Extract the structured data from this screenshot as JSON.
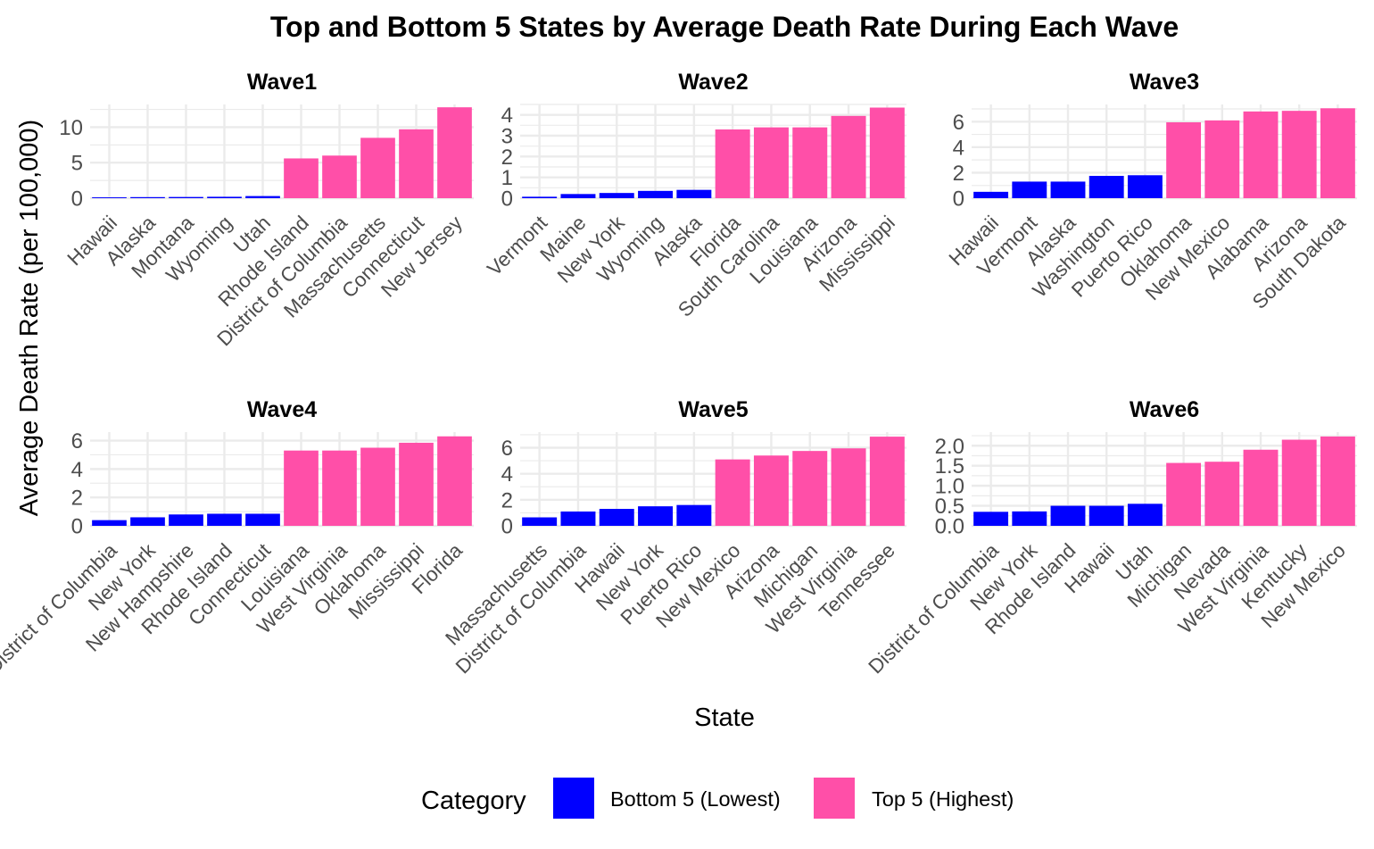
{
  "chart_data": {
    "type": "bar",
    "title": "Top and Bottom 5 States by Average Death Rate During Each Wave",
    "xlabel": "State",
    "ylabel": "Average Death Rate (per 100,000)",
    "legend": {
      "title": "Category",
      "placement": "bottom",
      "entries": [
        {
          "label": "Bottom 5 (Lowest)",
          "color": "#0000FF"
        },
        {
          "label": "Top 5 (Highest)",
          "color": "#FF4FA8"
        }
      ]
    },
    "grid": true,
    "panels": [
      {
        "name": "Wave1",
        "ylim": [
          0,
          13.2
        ],
        "yticks": [
          0,
          5,
          10
        ],
        "ytick_labels": [
          "0",
          "5",
          "10"
        ],
        "categories": [
          "Hawaii",
          "Alaska",
          "Montana",
          "Wyoming",
          "Utah",
          "Rhode Island",
          "District of Columbia",
          "Massachusetts",
          "Connecticut",
          "New Jersey"
        ],
        "values": [
          0.12,
          0.15,
          0.17,
          0.2,
          0.3,
          5.6,
          6.0,
          8.5,
          9.7,
          12.8
        ],
        "groups": [
          "bottom",
          "bottom",
          "bottom",
          "bottom",
          "bottom",
          "top",
          "top",
          "top",
          "top",
          "top"
        ]
      },
      {
        "name": "Wave2",
        "ylim": [
          0,
          4.5
        ],
        "yticks": [
          0,
          1,
          2,
          3,
          4
        ],
        "ytick_labels": [
          "0",
          "1",
          "2",
          "3",
          "4"
        ],
        "categories": [
          "Vermont",
          "Maine",
          "New York",
          "Wyoming",
          "Alaska",
          "Florida",
          "South Carolina",
          "Louisiana",
          "Arizona",
          "Mississippi"
        ],
        "values": [
          0.07,
          0.2,
          0.25,
          0.35,
          0.4,
          3.3,
          3.4,
          3.4,
          3.95,
          4.35
        ],
        "groups": [
          "bottom",
          "bottom",
          "bottom",
          "bottom",
          "bottom",
          "top",
          "top",
          "top",
          "top",
          "top"
        ]
      },
      {
        "name": "Wave3",
        "ylim": [
          0,
          7.35
        ],
        "yticks": [
          0,
          2,
          4,
          6
        ],
        "ytick_labels": [
          "0",
          "2",
          "4",
          "6"
        ],
        "categories": [
          "Hawaii",
          "Vermont",
          "Alaska",
          "Washington",
          "Puerto Rico",
          "Oklahoma",
          "New Mexico",
          "Alabama",
          "Arizona",
          "South Dakota"
        ],
        "values": [
          0.5,
          1.3,
          1.3,
          1.75,
          1.8,
          5.95,
          6.1,
          6.8,
          6.85,
          7.05
        ],
        "groups": [
          "bottom",
          "bottom",
          "bottom",
          "bottom",
          "bottom",
          "top",
          "top",
          "top",
          "top",
          "top"
        ]
      },
      {
        "name": "Wave4",
        "ylim": [
          0,
          6.6
        ],
        "yticks": [
          0,
          2,
          4,
          6
        ],
        "ytick_labels": [
          "0",
          "2",
          "4",
          "6"
        ],
        "categories": [
          "District of Columbia",
          "New York",
          "New Hampshire",
          "Rhode Island",
          "Connecticut",
          "Louisiana",
          "West Virginia",
          "Oklahoma",
          "Mississippi",
          "Florida"
        ],
        "values": [
          0.4,
          0.6,
          0.8,
          0.85,
          0.85,
          5.3,
          5.3,
          5.5,
          5.85,
          6.3
        ],
        "groups": [
          "bottom",
          "bottom",
          "bottom",
          "bottom",
          "bottom",
          "top",
          "top",
          "top",
          "top",
          "top"
        ]
      },
      {
        "name": "Wave5",
        "ylim": [
          0,
          7.2
        ],
        "yticks": [
          0,
          2,
          4,
          6
        ],
        "ytick_labels": [
          "0",
          "2",
          "4",
          "6"
        ],
        "categories": [
          "Massachusetts",
          "District of Columbia",
          "Hawaii",
          "New York",
          "Puerto Rico",
          "New Mexico",
          "Arizona",
          "Michigan",
          "West Virginia",
          "Tennessee"
        ],
        "values": [
          0.65,
          1.1,
          1.3,
          1.5,
          1.6,
          5.1,
          5.4,
          5.75,
          5.95,
          6.85
        ],
        "groups": [
          "bottom",
          "bottom",
          "bottom",
          "bottom",
          "bottom",
          "top",
          "top",
          "top",
          "top",
          "top"
        ]
      },
      {
        "name": "Wave6",
        "ylim": [
          0,
          2.34
        ],
        "yticks": [
          0,
          0.5,
          1,
          1.5,
          2
        ],
        "ytick_labels": [
          "0.0",
          "0.5",
          "1.0",
          "1.5",
          "2.0"
        ],
        "categories": [
          "District of Columbia",
          "New York",
          "Rhode Island",
          "Hawaii",
          "Utah",
          "Michigan",
          "Nevada",
          "West Virginia",
          "Kentucky",
          "New Mexico"
        ],
        "values": [
          0.35,
          0.36,
          0.5,
          0.5,
          0.55,
          1.57,
          1.6,
          1.9,
          2.15,
          2.23
        ],
        "groups": [
          "bottom",
          "bottom",
          "bottom",
          "bottom",
          "bottom",
          "top",
          "top",
          "top",
          "top",
          "top"
        ]
      }
    ]
  }
}
